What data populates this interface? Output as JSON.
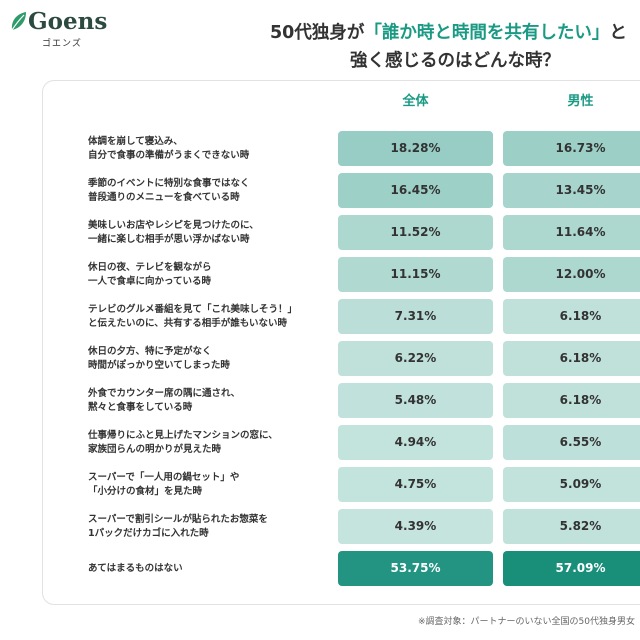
{
  "logo": {
    "name": "Goens",
    "kana": "ゴエンズ",
    "icon": "leaf-icon"
  },
  "title": {
    "line1_before": "50代独身が",
    "line1_highlight": "「誰か時と時間を共有したい」",
    "line1_after": "と",
    "line2": "強く感じるのはどんな時？"
  },
  "colors": {
    "accent": "#1a9a84",
    "text": "#333333",
    "text_on_dark": "#ffffff",
    "cell_light": "#d3ebe6",
    "cell_dark": "#0f8a75",
    "logo": "#2c4a40",
    "leaf": "#2f9a6a"
  },
  "footnote": "※調査対象：パートナーのいない全国の50代独身男女",
  "chart_data": {
    "type": "table",
    "columns": [
      "全体",
      "男性"
    ],
    "unit": "%",
    "rows": [
      {
        "label": [
          "体調を崩して寝込み、",
          "自分で食事の準備がうまくできない時"
        ],
        "values": [
          18.28,
          16.73
        ]
      },
      {
        "label": [
          "季節のイベントに特別な食事ではなく",
          "普段通りのメニューを食べている時"
        ],
        "values": [
          16.45,
          13.45
        ]
      },
      {
        "label": [
          "美味しいお店やレシピを見つけたのに、",
          "一緒に楽しむ相手が思い浮かばない時"
        ],
        "values": [
          11.52,
          11.64
        ]
      },
      {
        "label": [
          "休日の夜、テレビを観ながら",
          "一人で食卓に向かっている時"
        ],
        "values": [
          11.15,
          12.0
        ]
      },
      {
        "label": [
          "テレビのグルメ番組を見て「これ美味しそう！」",
          "と伝えたいのに、共有する相手が誰もいない時"
        ],
        "values": [
          7.31,
          6.18
        ]
      },
      {
        "label": [
          "休日の夕方、特に予定がなく",
          "時間がぽっかり空いてしまった時"
        ],
        "values": [
          6.22,
          6.18
        ]
      },
      {
        "label": [
          "外食でカウンター席の隅に通され、",
          "黙々と食事をしている時"
        ],
        "values": [
          5.48,
          6.18
        ]
      },
      {
        "label": [
          "仕事帰りにふと見上げたマンションの窓に、",
          "家族団らんの明かりが見えた時"
        ],
        "values": [
          4.94,
          6.55
        ]
      },
      {
        "label": [
          "スーパーで「一人用の鍋セット」や",
          "「小分けの食材」を見た時"
        ],
        "values": [
          4.75,
          5.09
        ]
      },
      {
        "label": [
          "スーパーで割引シールが貼られたお惣菜を",
          "1パックだけカゴに入れた時"
        ],
        "values": [
          4.39,
          5.82
        ]
      },
      {
        "label": [
          "あてはまるものはない"
        ],
        "values": [
          53.75,
          57.09
        ]
      }
    ]
  }
}
